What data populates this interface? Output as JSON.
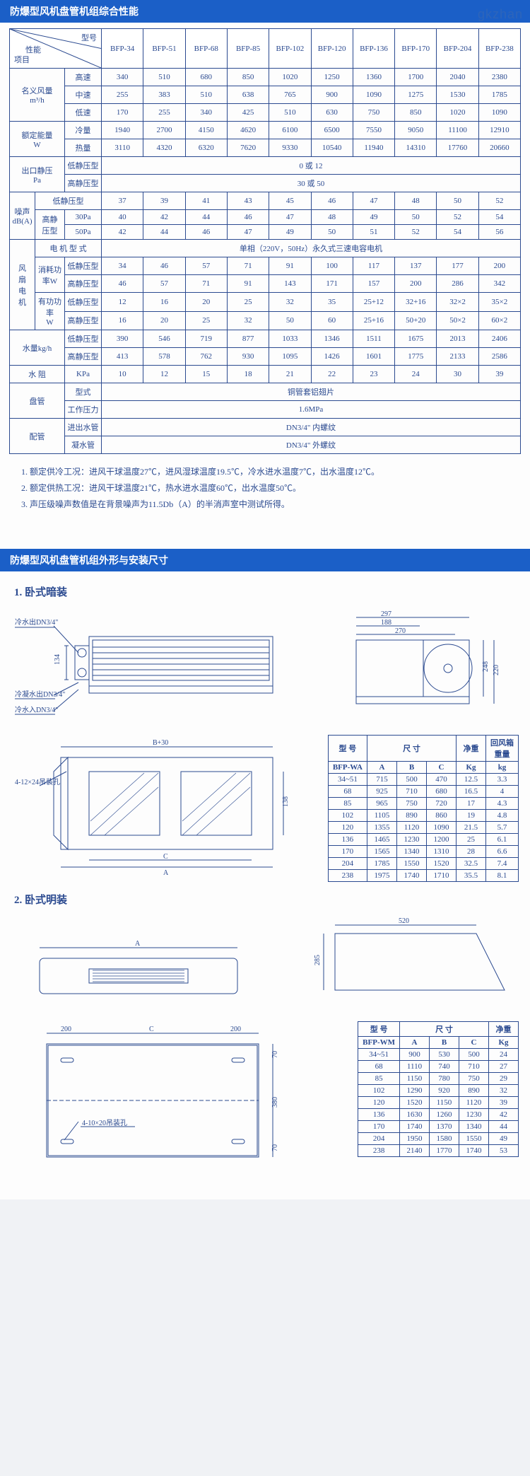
{
  "watermark": "gkzhan",
  "colors": {
    "primary": "#1b5fc7",
    "line": "#2b4a90",
    "page_bg": "#fdfdfd",
    "outer_bg": "#f0f2f5"
  },
  "section1_title": "防爆型风机盘管机组综合性能",
  "section2_title": "防爆型风机盘管机组外形与安装尺寸",
  "header_model": "型号",
  "header_item": "项目",
  "header_perf": "性能",
  "models": [
    "BFP-34",
    "BFP-51",
    "BFP-68",
    "BFP-85",
    "BFP-102",
    "BFP-120",
    "BFP-136",
    "BFP-170",
    "BFP-204",
    "BFP-238"
  ],
  "group_airflow": "名义风量\nm³/h",
  "row_high": "高速",
  "row_mid": "中速",
  "row_low": "低速",
  "vals_high": [
    "340",
    "510",
    "680",
    "850",
    "1020",
    "1250",
    "1360",
    "1700",
    "2040",
    "2380"
  ],
  "vals_mid": [
    "255",
    "383",
    "510",
    "638",
    "765",
    "900",
    "1090",
    "1275",
    "1530",
    "1785"
  ],
  "vals_low": [
    "170",
    "255",
    "340",
    "425",
    "510",
    "630",
    "750",
    "850",
    "1020",
    "1090"
  ],
  "group_power": "额定能量\nW",
  "row_cool": "冷量",
  "row_heat": "热量",
  "vals_cool": [
    "1940",
    "2700",
    "4150",
    "4620",
    "6100",
    "6500",
    "7550",
    "9050",
    "11100",
    "12910"
  ],
  "vals_heat": [
    "3110",
    "4320",
    "6320",
    "7620",
    "9330",
    "10540",
    "11940",
    "14310",
    "17760",
    "20660"
  ],
  "group_esp": "出口静压\nPa",
  "row_esp_l": "低静压型",
  "row_esp_h": "高静压型",
  "val_esp_l": "0 或 12",
  "val_esp_h": "30 或 50",
  "group_noise": "噪声\ndB(A)",
  "sub_noise_l": "低静压型",
  "sub_noise_h": "高静\n压型",
  "row_30pa": "30Pa",
  "row_50pa": "50Pa",
  "vals_noise_l": [
    "37",
    "39",
    "41",
    "43",
    "45",
    "46",
    "47",
    "48",
    "50",
    "52"
  ],
  "vals_noise_30": [
    "40",
    "42",
    "44",
    "46",
    "47",
    "48",
    "49",
    "50",
    "52",
    "54"
  ],
  "vals_noise_50": [
    "42",
    "44",
    "46",
    "47",
    "49",
    "50",
    "51",
    "52",
    "54",
    "56"
  ],
  "group_fanmotor": "风\n扇\n电\n机",
  "row_motortype": "电 机 型 式",
  "val_motortype": "单相（220V，50Hz）永久式三速电容电机",
  "sub_consume": "消耗功\n率W",
  "sub_useful": "有功功率\nW",
  "row_sp_l": "低静压型",
  "row_sp_h": "高静压型",
  "vals_consume_l": [
    "34",
    "46",
    "57",
    "71",
    "91",
    "100",
    "117",
    "137",
    "177",
    "200"
  ],
  "vals_consume_h": [
    "46",
    "57",
    "71",
    "91",
    "143",
    "171",
    "157",
    "200",
    "286",
    "342"
  ],
  "vals_useful_l": [
    "12",
    "16",
    "20",
    "25",
    "32",
    "35",
    "25+12",
    "32+16",
    "32×2",
    "35×2"
  ],
  "vals_useful_h": [
    "16",
    "20",
    "25",
    "32",
    "50",
    "60",
    "25+16",
    "50+20",
    "50×2",
    "60×2"
  ],
  "group_water": "水量kg/h",
  "vals_water_l": [
    "390",
    "546",
    "719",
    "877",
    "1033",
    "1346",
    "1511",
    "1675",
    "2013",
    "2406"
  ],
  "vals_water_h": [
    "413",
    "578",
    "762",
    "930",
    "1095",
    "1426",
    "1601",
    "1775",
    "2133",
    "2586"
  ],
  "row_waterres": "水 阻",
  "row_kpa": "KPa",
  "vals_kpa": [
    "10",
    "12",
    "15",
    "18",
    "21",
    "22",
    "23",
    "24",
    "30",
    "39"
  ],
  "group_coil": "盘管",
  "row_coil_type": "型式",
  "val_coil_type": "铜管套铝翅片",
  "row_coil_wp": "工作压力",
  "val_coil_wp": "1.6MPa",
  "group_pipe": "配管",
  "row_pipe_io": "进出水管",
  "val_pipe_io": "DN3/4\" 内螺纹",
  "row_pipe_drain": "凝水管",
  "val_pipe_drain": "DN3/4\" 外螺纹",
  "notes": [
    "1. 额定供冷工况：进风干球温度27℃，进风湿球温度19.5℃，冷水进水温度7℃，出水温度12℃。",
    "2. 额定供热工况：进风干球温度21℃，热水进水温度60℃，出水温度50℃。",
    "3. 声压级噪声数值是在背景噪声为11.5Db（A）的半消声室中测试所得。"
  ],
  "sub1": "1. 卧式暗装",
  "sub2": "2. 卧式明装",
  "draw1_labels": {
    "cold_out": "冷水出DN3/4\"",
    "cond_out": "冷凝水出DN3/4\"",
    "cold_in": "冷水入DN3/4\"",
    "dim_134": "134",
    "dim_188": "188",
    "dim_297": "297",
    "dim_270": "270",
    "dim_248": "248",
    "dim_220": "220",
    "dim_B30": "B+30",
    "dim_A": "A",
    "dim_C": "C",
    "bolt": "4-12×24吊装孔",
    "dim_138": "138"
  },
  "table_wa_title": "型 号",
  "table_wa_size": "尺 寸",
  "table_wa_weight": "净重",
  "table_wa_box": "回风箱\n重量",
  "table_wa_series": "BFP-WA",
  "table_wa_cols": [
    "A",
    "B",
    "C",
    "Kg",
    "kg"
  ],
  "table_wa_rows": [
    [
      "34~51",
      "715",
      "500",
      "470",
      "12.5",
      "3.3"
    ],
    [
      "68",
      "925",
      "710",
      "680",
      "16.5",
      "4"
    ],
    [
      "85",
      "965",
      "750",
      "720",
      "17",
      "4.3"
    ],
    [
      "102",
      "1105",
      "890",
      "860",
      "19",
      "4.8"
    ],
    [
      "120",
      "1355",
      "1120",
      "1090",
      "21.5",
      "5.7"
    ],
    [
      "136",
      "1465",
      "1230",
      "1200",
      "25",
      "6.1"
    ],
    [
      "170",
      "1565",
      "1340",
      "1310",
      "28",
      "6.6"
    ],
    [
      "204",
      "1785",
      "1550",
      "1520",
      "32.5",
      "7.4"
    ],
    [
      "238",
      "1975",
      "1740",
      "1710",
      "35.5",
      "8.1"
    ]
  ],
  "draw2_labels": {
    "dim_A": "A",
    "dim_C": "C",
    "dim_200l": "200",
    "dim_200r": "200",
    "dim_70t": "70",
    "dim_70b": "70",
    "dim_380": "380",
    "bolt2": "4-10×20吊装孔",
    "dim_520": "520",
    "dim_285": "285"
  },
  "table_wm_series": "BFP-WM",
  "table_wm_cols": [
    "A",
    "B",
    "C",
    "Kg"
  ],
  "table_wm_rows": [
    [
      "34~51",
      "900",
      "530",
      "500",
      "24"
    ],
    [
      "68",
      "1110",
      "740",
      "710",
      "27"
    ],
    [
      "85",
      "1150",
      "780",
      "750",
      "29"
    ],
    [
      "102",
      "1290",
      "920",
      "890",
      "32"
    ],
    [
      "120",
      "1520",
      "1150",
      "1120",
      "39"
    ],
    [
      "136",
      "1630",
      "1260",
      "1230",
      "42"
    ],
    [
      "170",
      "1740",
      "1370",
      "1340",
      "44"
    ],
    [
      "204",
      "1950",
      "1580",
      "1550",
      "49"
    ],
    [
      "238",
      "2140",
      "1770",
      "1740",
      "53"
    ]
  ]
}
